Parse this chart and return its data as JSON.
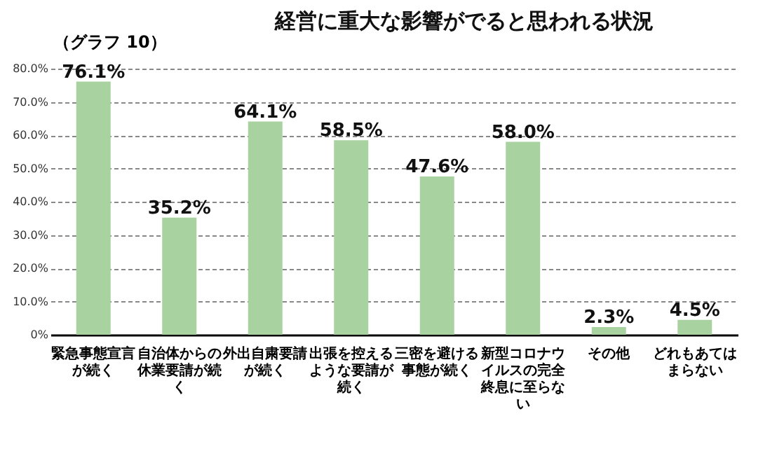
{
  "chart_data": {
    "type": "bar",
    "title": "経営に重大な影響がでると思われる状況",
    "annotations": [
      "（グラフ 10）"
    ],
    "categories": [
      "緊急事態宣言が続く",
      "自治体からの休業要請が続く",
      "外出自粛要請が続く",
      "出張を控えるような要請が続く",
      "三密を避ける事態が続く",
      "新型コロナウイルスの完全終息に至らない",
      "その他",
      "どれもあてはまらない"
    ],
    "values": [
      76.1,
      35.2,
      64.1,
      58.5,
      47.6,
      58.0,
      2.3,
      4.5
    ],
    "value_labels": [
      "76.1%",
      "35.2%",
      "64.1%",
      "58.5%",
      "47.6%",
      "58.0%",
      "2.3%",
      "4.5%"
    ],
    "color": "#a8d2a0",
    "ylim": [
      0,
      80
    ],
    "yticks": [
      {
        "value": 0,
        "label": "0%"
      },
      {
        "value": 10,
        "label": "10.0%"
      },
      {
        "value": 20,
        "label": "20.0%"
      },
      {
        "value": 30,
        "label": "30.0%"
      },
      {
        "value": 40,
        "label": "40.0%"
      },
      {
        "value": 50,
        "label": "50.0%"
      },
      {
        "value": 60,
        "label": "60.0%"
      },
      {
        "value": 70,
        "label": "70.0%"
      },
      {
        "value": 80,
        "label": "80.0%"
      }
    ],
    "grid": true
  }
}
